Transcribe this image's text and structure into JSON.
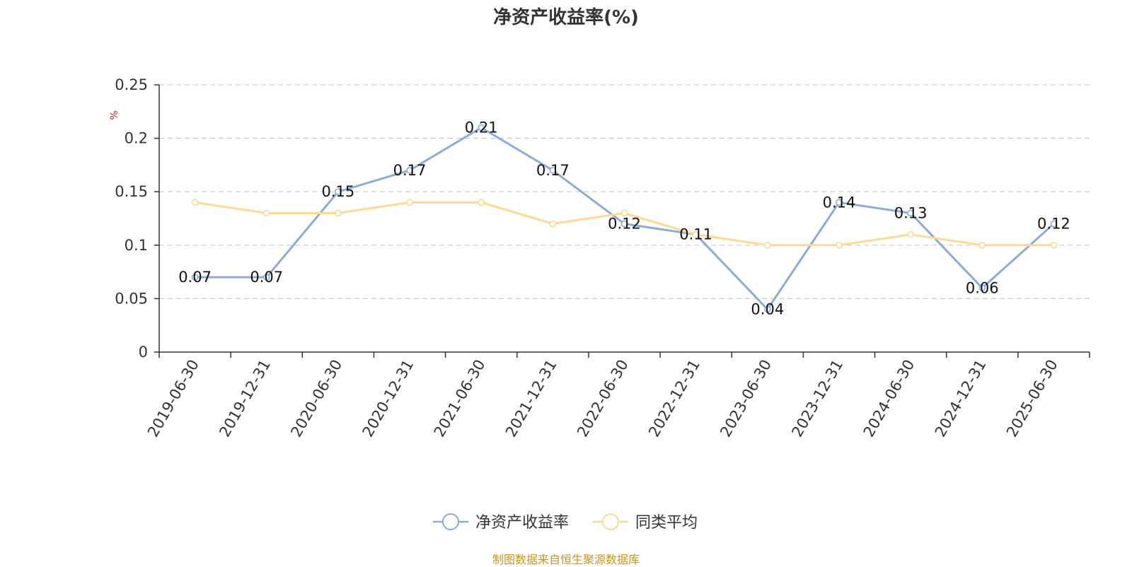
{
  "chart_data": {
    "type": "line",
    "title": "净资产收益率(%)",
    "ylabel": "%",
    "categories": [
      "2019-06-30",
      "2019-12-31",
      "2020-06-30",
      "2020-12-31",
      "2021-06-30",
      "2021-12-31",
      "2022-06-30",
      "2022-12-31",
      "2023-06-30",
      "2023-12-31",
      "2024-06-30",
      "2024-12-31",
      "2025-06-30"
    ],
    "series": [
      {
        "name": "净资产收益率",
        "color": "#8eabd6",
        "values": [
          0.07,
          0.07,
          0.15,
          0.17,
          0.21,
          0.17,
          0.12,
          0.11,
          0.04,
          0.14,
          0.13,
          0.06,
          0.12
        ],
        "data_labels": true
      },
      {
        "name": "同类平均",
        "color": "#fdd994",
        "values": [
          0.14,
          0.13,
          0.13,
          0.14,
          0.14,
          0.12,
          0.13,
          0.11,
          0.1,
          0.1,
          0.11,
          0.1,
          0.1
        ],
        "data_labels": false
      }
    ],
    "ylim": [
      0,
      0.25
    ],
    "yticks": [
      "0",
      "0.05",
      "0.1",
      "0.15",
      "0.2",
      "0.25"
    ],
    "grid": true,
    "legend_position": "bottom-center",
    "source": "制图数据来自恒生聚源数据库"
  }
}
